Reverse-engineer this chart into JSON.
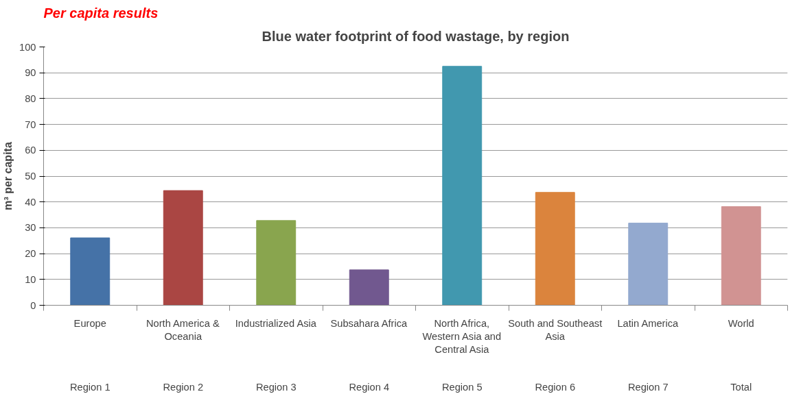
{
  "chart_data": {
    "type": "bar",
    "title": "Blue water footprint of food wastage, by region",
    "subtitle": "Per capita results",
    "ylabel": "m³ per capita",
    "categories": [
      "Europe",
      "North America & Oceania",
      "Industrialized Asia",
      "Subsahara Africa",
      "North Africa, Western Asia and Central Asia",
      "South and Southeast Asia",
      "Latin America",
      "World"
    ],
    "values": [
      26.1,
      44.4,
      32.8,
      13.7,
      92.5,
      43.7,
      31.8,
      38.2
    ],
    "colors": [
      "#4572a7",
      "#aa4643",
      "#89a54e",
      "#71588f",
      "#4198af",
      "#db843d",
      "#93a9cf",
      "#d19392"
    ],
    "annotations": [
      "Region 1",
      "Region 2",
      "Region 3",
      "Region 4",
      "Region 5",
      "Region 6",
      "Region 7",
      "Total"
    ],
    "ylim": [
      0,
      100
    ],
    "yticks": [
      0,
      10,
      20,
      30,
      40,
      50,
      60,
      70,
      80,
      90,
      100
    ],
    "grid": "y"
  }
}
